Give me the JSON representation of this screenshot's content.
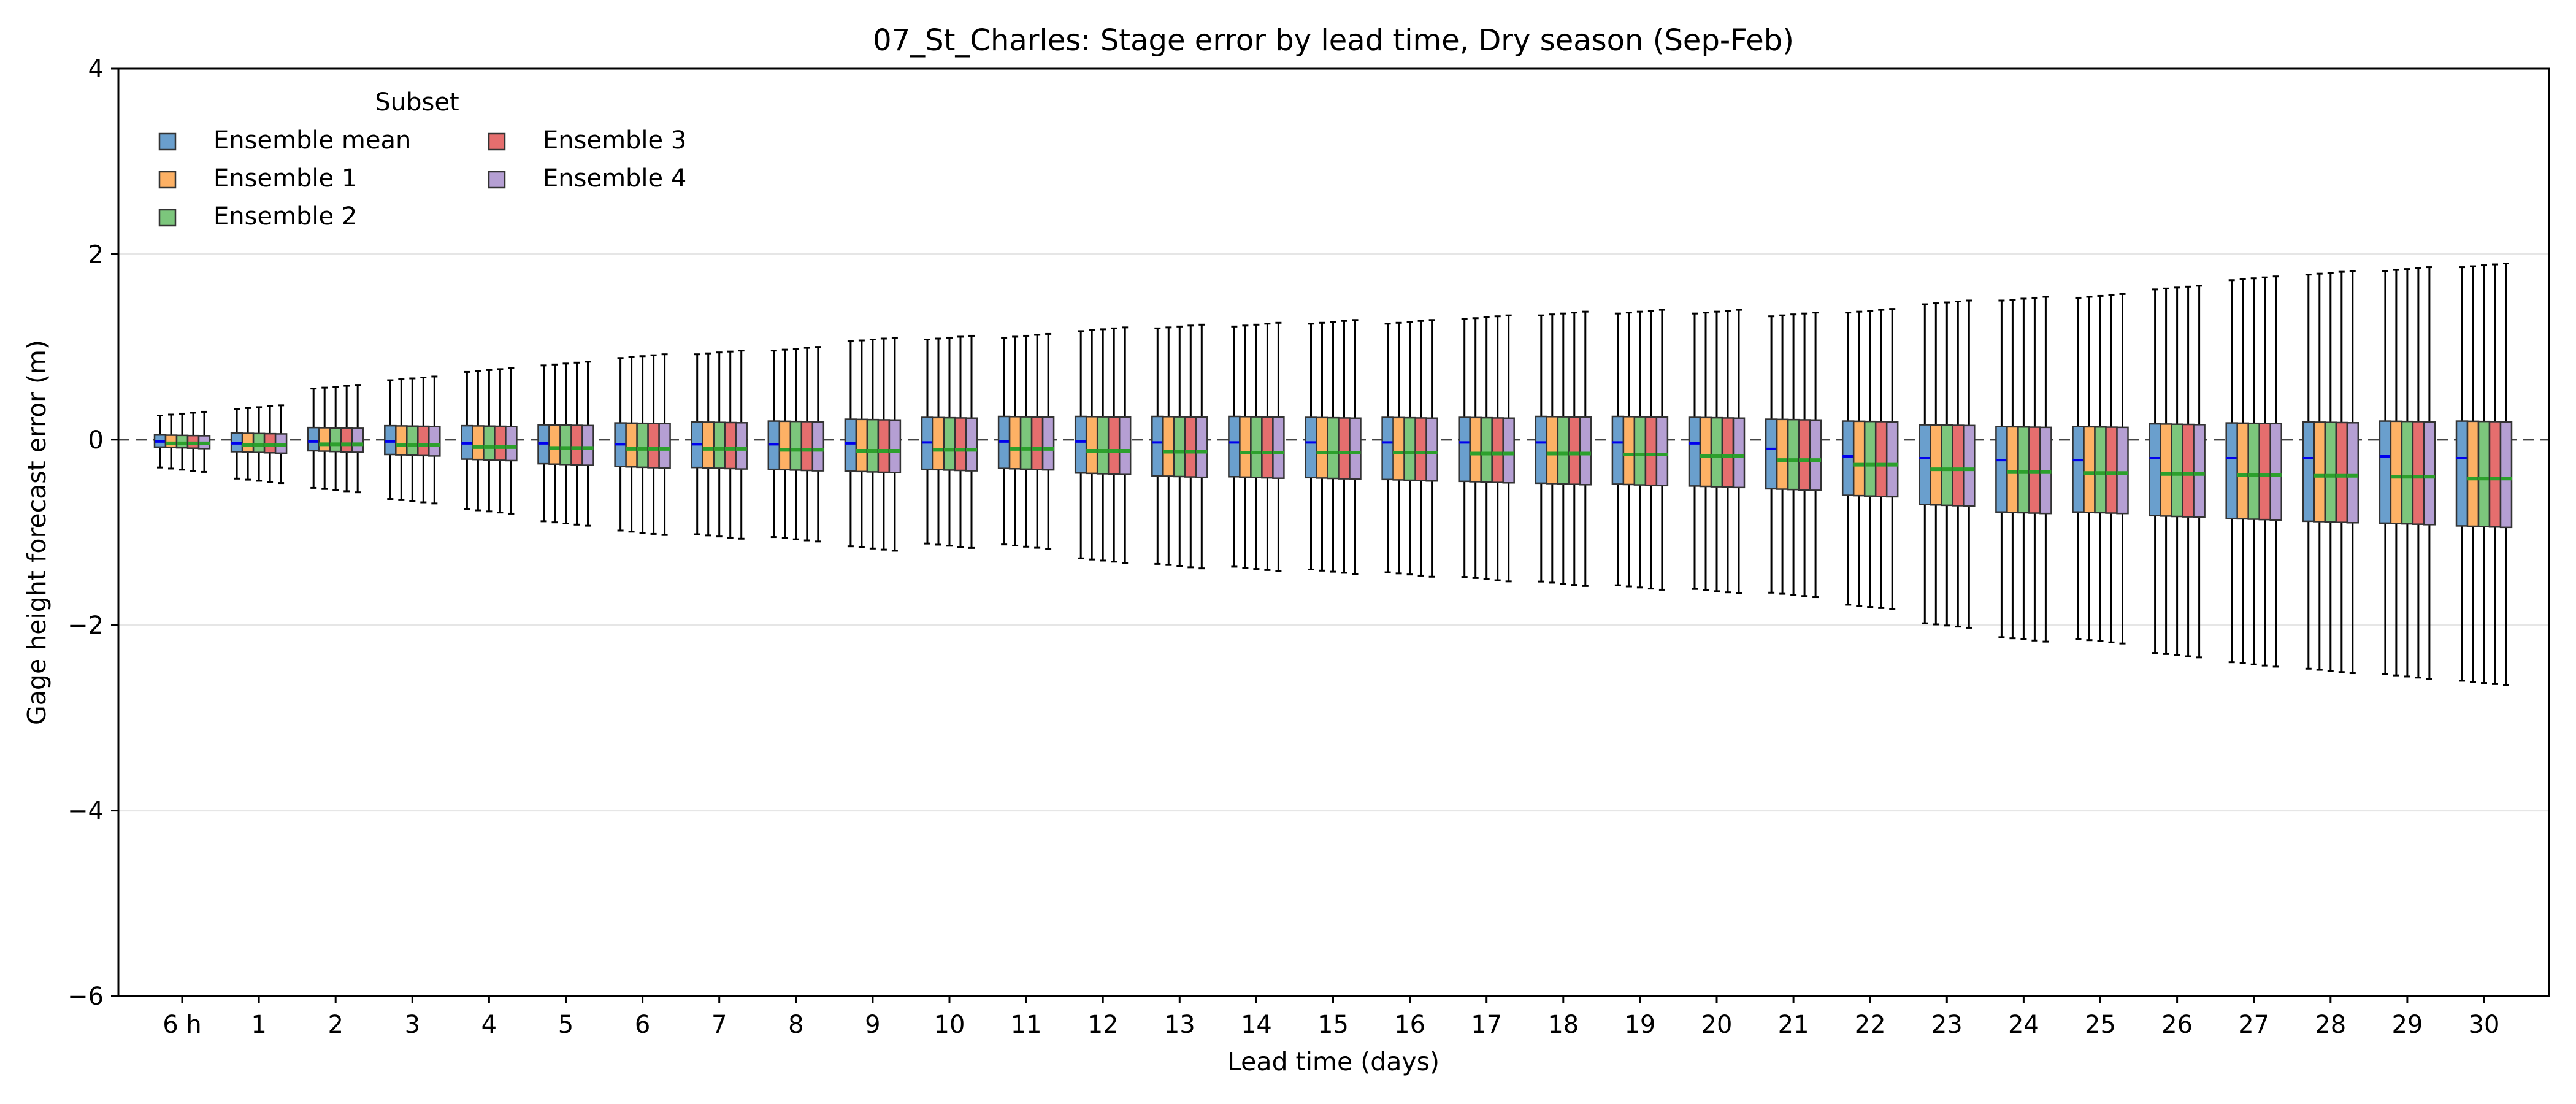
{
  "chart_data": {
    "type": "box",
    "title": "07_St_Charles: Stage error by lead time, Dry season (Sep-Feb)",
    "xlabel": "Lead time (days)",
    "ylabel": "Gage height forecast error (m)",
    "ylim": [
      -6,
      4
    ],
    "yticks": [
      -6,
      -4,
      -2,
      0,
      2,
      4
    ],
    "ytick_labels": [
      "−6",
      "−4",
      "−2",
      "0",
      "2",
      "4"
    ],
    "grid": "horizontal",
    "reference_line": 0,
    "legend": {
      "title": "Subset",
      "placement": "upper-left",
      "columns": 2
    },
    "categories": [
      "6 h",
      "1",
      "2",
      "3",
      "4",
      "5",
      "6",
      "7",
      "8",
      "9",
      "10",
      "11",
      "12",
      "13",
      "14",
      "15",
      "16",
      "17",
      "18",
      "19",
      "20",
      "21",
      "22",
      "23",
      "24",
      "25",
      "26",
      "27",
      "28",
      "29",
      "30"
    ],
    "stats": {
      "q1": [
        -0.08,
        -0.13,
        -0.12,
        -0.16,
        -0.21,
        -0.26,
        -0.29,
        -0.3,
        -0.32,
        -0.34,
        -0.32,
        -0.31,
        -0.36,
        -0.39,
        -0.4,
        -0.41,
        -0.43,
        -0.45,
        -0.47,
        -0.48,
        -0.5,
        -0.53,
        -0.6,
        -0.7,
        -0.78,
        -0.78,
        -0.82,
        -0.85,
        -0.88,
        -0.9,
        -0.93
      ],
      "q3": [
        0.05,
        0.07,
        0.13,
        0.15,
        0.15,
        0.16,
        0.18,
        0.19,
        0.2,
        0.22,
        0.24,
        0.25,
        0.25,
        0.25,
        0.25,
        0.24,
        0.24,
        0.24,
        0.25,
        0.25,
        0.24,
        0.22,
        0.2,
        0.16,
        0.14,
        0.14,
        0.17,
        0.18,
        0.19,
        0.2,
        0.2
      ],
      "mean_median": [
        -0.02,
        -0.04,
        -0.02,
        -0.02,
        -0.04,
        -0.04,
        -0.05,
        -0.05,
        -0.05,
        -0.04,
        -0.03,
        -0.02,
        -0.02,
        -0.03,
        -0.03,
        -0.03,
        -0.03,
        -0.03,
        -0.03,
        -0.03,
        -0.04,
        -0.1,
        -0.18,
        -0.2,
        -0.22,
        -0.22,
        -0.2,
        -0.2,
        -0.2,
        -0.18,
        -0.2
      ],
      "ens_median": [
        -0.04,
        -0.06,
        -0.05,
        -0.06,
        -0.08,
        -0.09,
        -0.1,
        -0.1,
        -0.11,
        -0.12,
        -0.11,
        -0.1,
        -0.12,
        -0.13,
        -0.14,
        -0.14,
        -0.14,
        -0.15,
        -0.15,
        -0.16,
        -0.18,
        -0.22,
        -0.27,
        -0.32,
        -0.35,
        -0.36,
        -0.37,
        -0.38,
        -0.39,
        -0.4,
        -0.42
      ],
      "whisker_low": [
        -0.3,
        -0.42,
        -0.52,
        -0.64,
        -0.75,
        -0.88,
        -0.98,
        -1.02,
        -1.05,
        -1.15,
        -1.12,
        -1.13,
        -1.28,
        -1.34,
        -1.37,
        -1.4,
        -1.43,
        -1.48,
        -1.53,
        -1.57,
        -1.61,
        -1.65,
        -1.78,
        -1.98,
        -2.13,
        -2.15,
        -2.3,
        -2.4,
        -2.47,
        -2.53,
        -2.6
      ],
      "whisker_high": [
        0.26,
        0.33,
        0.55,
        0.64,
        0.73,
        0.8,
        0.88,
        0.92,
        0.96,
        1.06,
        1.08,
        1.1,
        1.17,
        1.2,
        1.22,
        1.25,
        1.25,
        1.3,
        1.34,
        1.36,
        1.36,
        1.33,
        1.37,
        1.46,
        1.5,
        1.53,
        1.62,
        1.72,
        1.78,
        1.82,
        1.86
      ]
    },
    "series": [
      {
        "name": "Ensemble mean",
        "color": "#6a9fcd"
      },
      {
        "name": "Ensemble 1",
        "color": "#fdb165"
      },
      {
        "name": "Ensemble 2",
        "color": "#7cc67c"
      },
      {
        "name": "Ensemble 3",
        "color": "#e56e6e"
      },
      {
        "name": "Ensemble 4",
        "color": "#b59fd3"
      }
    ],
    "median_colors": {
      "ensemble_mean": "#0000ee",
      "ensembles": "#2ca02c"
    }
  }
}
